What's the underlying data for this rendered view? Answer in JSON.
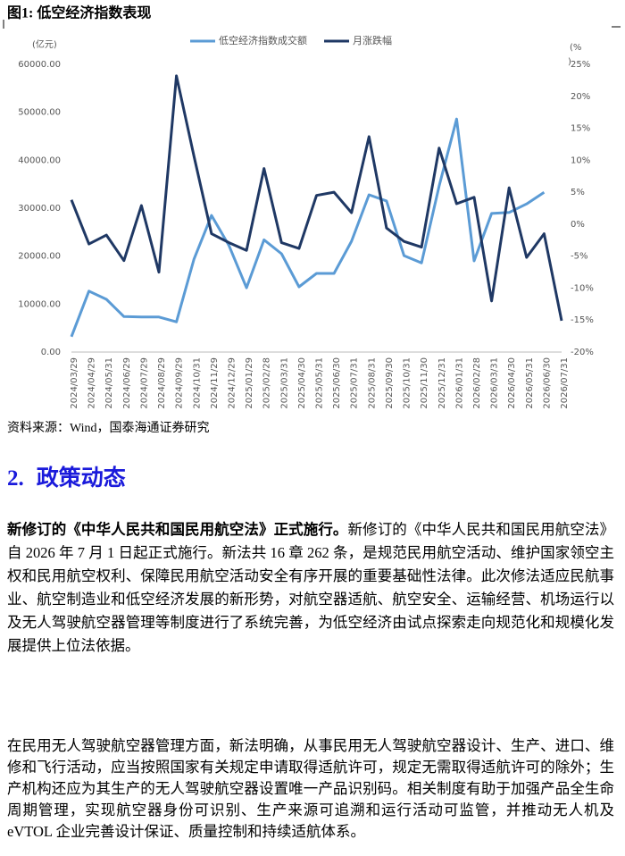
{
  "figure_title": "图1:  低空经济指数表现",
  "chart_data": {
    "type": "line",
    "y_label": "(亿元)",
    "y2_label": [
      "(%",
      ")"
    ],
    "categories": [
      "2024/03/29",
      "2024/04/29",
      "2024/05/31",
      "2024/06/29",
      "2024/07/29",
      "2024/08/29",
      "2024/09/29",
      "2024/10/31",
      "2024/11/29",
      "2024/12/29",
      "2025/01/29",
      "2025/02/28",
      "2025/03/31",
      "2025/04/30",
      "2025/05/31",
      "2025/06/30",
      "2025/07/31",
      "2025/08/31",
      "2025/09/30",
      "2025/10/31",
      "2025/11/30",
      "2025/12/31",
      "2026/01/31",
      "2026/02/28",
      "2026/03/31",
      "2026/04/30",
      "2026/05/31",
      "2026/06/30",
      "2026/07/31"
    ],
    "series": [
      {
        "name": "低空经济指数成交额",
        "color": "#5b9bd5",
        "values": [
          3200,
          12700,
          11000,
          7400,
          7300,
          7300,
          6300,
          19400,
          28500,
          22200,
          13400,
          23400,
          20500,
          13600,
          16400,
          16400,
          23100,
          32800,
          31500,
          20100,
          18600,
          34600,
          48600,
          19000,
          28900,
          29100,
          30900,
          33300,
          null
        ]
      },
      {
        "name": "月涨跌幅",
        "color": "#1f3864",
        "axis": "y2",
        "values": [
          3.8,
          -3.1,
          -1.7,
          -5.7,
          2.9,
          -7.5,
          23.2,
          10.6,
          -1.5,
          -2.9,
          -4.1,
          8.7,
          -2.9,
          -3.8,
          4.5,
          5.0,
          1.8,
          13.7,
          -0.6,
          -2.7,
          -3.6,
          11.9,
          3.2,
          4.2,
          -12.0,
          5.7,
          -5.2,
          -1.5,
          -15.1
        ]
      }
    ],
    "ylim": [
      0,
      60000
    ],
    "yticks": [
      {
        "value": 0,
        "label": "0.00"
      },
      {
        "value": 10000,
        "label": "10000.00"
      },
      {
        "value": 20000,
        "label": "20000.00"
      },
      {
        "value": 30000,
        "label": "30000.00"
      },
      {
        "value": 40000,
        "label": "40000.00"
      },
      {
        "value": 50000,
        "label": "50000.00"
      },
      {
        "value": 60000,
        "label": "60000.00"
      }
    ],
    "y2lim": [
      -20,
      25
    ],
    "y2ticks": [
      {
        "value": -20,
        "label": "-20%"
      },
      {
        "value": -15,
        "label": "-15%"
      },
      {
        "value": -10,
        "label": "-10%"
      },
      {
        "value": -5,
        "label": "-5%"
      },
      {
        "value": 0,
        "label": "0%"
      },
      {
        "value": 5,
        "label": "5%"
      },
      {
        "value": 10,
        "label": "10%"
      },
      {
        "value": 15,
        "label": "15%"
      },
      {
        "value": 20,
        "label": "20%"
      },
      {
        "value": 25,
        "label": "25%"
      }
    ],
    "grid": false,
    "legend": "top"
  },
  "source": "资料来源：Wind，国泰海通证券研究",
  "section": {
    "number": "2.",
    "title": "政策动态"
  },
  "paragraphs": [
    {
      "lead": "新修订的《中华人民共和国民用航空法》正式施行。",
      "text": "新修订的《中华人民共和国民用航空法》自 2026 年 7 月 1 日起正式施行。新法共 16 章 262 条，是规范民用航空活动、维护国家领空主权和民用航空权利、保障民用航空活动安全有序开展的重要基础性法律。此次修法适应民航事业、航空制造业和低空经济发展的新形势，对航空器适航、航空安全、运输经营、机场运行以及无人驾驶航空器管理等制度进行了系统完善，为低空经济由试点探索走向规范化和规模化发展提供上位法依据。"
    },
    {
      "text": "在民用无人驾驶航空器管理方面，新法明确，从事民用无人驾驶航空器设计、生产、进口、维修和飞行活动，应当按照国家有关规定申请取得适航许可，规定无需取得适航许可的除外；生产机构还应为其生产的无人驾驶航空器设置唯一产品识别码。相关制度有助于加强产品全生命周期管理，实现航空器身份可识别、生产来源可追溯和运行活动可监管，并推动无人机及 eVTOL 企业完善设计保证、质量控制和持续适航体系。"
    }
  ]
}
